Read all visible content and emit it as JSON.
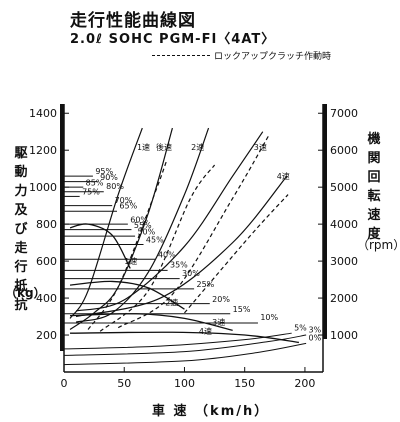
{
  "chart_data": {
    "type": "line",
    "title": "走行性能曲線図",
    "subtitle": "2.0ℓ SOHC PGM-FI〈4AT〉",
    "legend": {
      "entries": [
        {
          "name": "ロックアップクラッチ作動時",
          "style": "dashed"
        }
      ],
      "placement": "top-right"
    },
    "xlabel": "車 速 （km/h）",
    "ylabel": "駆動力 及び 走行抵抗",
    "ylabel_unit": "（kg）",
    "y2label": "機関回転速度",
    "y2label_unit": "（rpm）",
    "xlim": [
      0,
      215
    ],
    "ylim": [
      0,
      1450
    ],
    "y2lim": [
      0,
      7250
    ],
    "x_ticks": [
      "0",
      "50",
      "100",
      "150",
      "200"
    ],
    "y_ticks": [
      "200",
      "400",
      "600",
      "800",
      "1000",
      "1200",
      "1400"
    ],
    "y2_ticks": [
      "1000",
      "2000",
      "3000",
      "4000",
      "5000",
      "6000",
      "7000"
    ],
    "drive_force": [
      {
        "label": "1速",
        "label_x": 50,
        "label_y": 585,
        "x": [
          5,
          20,
          40,
          55
        ],
        "y": [
          780,
          800,
          740,
          560
        ]
      },
      {
        "label": "2速",
        "label_x": 84,
        "label_y": 360,
        "x": [
          5,
          40,
          70,
          100
        ],
        "y": [
          470,
          490,
          455,
          340
        ]
      },
      {
        "label": "3速",
        "label_x": 123,
        "label_y": 255,
        "x": [
          5,
          60,
          100,
          140
        ],
        "y": [
          305,
          315,
          290,
          225
        ]
      },
      {
        "label": "4速",
        "label_x": 112,
        "label_y": 205,
        "x": [
          5,
          90,
          150,
          195
        ],
        "y": [
          210,
          215,
          200,
          160
        ]
      }
    ],
    "engine_speed": [
      {
        "label": "1速",
        "label_x": 66,
        "label_y": 1200,
        "lockup": false,
        "x": [
          5,
          20,
          45,
          65
        ],
        "y": [
          1450,
          2200,
          4800,
          6600
        ]
      },
      {
        "label": "後速",
        "label_x": 83,
        "label_y": 1200,
        "lockup": false,
        "x": [
          5,
          25,
          45,
          70,
          90
        ],
        "y": [
          1150,
          1600,
          2300,
          4300,
          6600
        ]
      },
      {
        "label": "",
        "lockup": true,
        "x": [
          20,
          45,
          75,
          85
        ],
        "y": [
          1150,
          2300,
          4800,
          5700
        ]
      },
      {
        "label": "2速",
        "label_x": 111,
        "label_y": 1200,
        "lockup": false,
        "x": [
          10,
          40,
          70,
          100,
          120
        ],
        "y": [
          1350,
          1600,
          2700,
          4800,
          6600
        ]
      },
      {
        "label": "",
        "lockup": true,
        "x": [
          30,
          70,
          105,
          125
        ],
        "y": [
          1100,
          2200,
          4700,
          5600
        ]
      },
      {
        "label": "3速",
        "label_x": 163,
        "label_y": 1200,
        "lockup": false,
        "x": [
          10,
          50,
          100,
          140,
          165
        ],
        "y": [
          1650,
          1950,
          3400,
          5300,
          6500
        ]
      },
      {
        "label": "",
        "lockup": true,
        "x": [
          45,
          90,
          140,
          170
        ],
        "y": [
          1200,
          2100,
          4700,
          6400
        ]
      },
      {
        "label": "4速",
        "label_x": 182,
        "label_y": 1045,
        "lockup": false,
        "x": [
          10,
          80,
          140,
          185
        ],
        "y": [
          1500,
          2000,
          3500,
          5300
        ]
      },
      {
        "label": "",
        "lockup": true,
        "x": [
          100,
          155,
          186
        ],
        "y": [
          1600,
          3700,
          4800
        ]
      }
    ],
    "running_resistance": [
      {
        "label": "95%",
        "label_x": 26,
        "label_y": 1070,
        "x": [
          0,
          24
        ],
        "y": [
          1060,
          1060
        ]
      },
      {
        "label": "90%",
        "label_x": 30,
        "label_y": 1040,
        "x": [
          0,
          28
        ],
        "y": [
          1030,
          1030
        ]
      },
      {
        "label": "85%",
        "label_x": 18,
        "label_y": 1010,
        "x": [
          0,
          16
        ],
        "y": [
          1000,
          1000
        ]
      },
      {
        "label": "80%",
        "label_x": 35,
        "label_y": 990,
        "x": [
          0,
          33
        ],
        "y": [
          975,
          975
        ]
      },
      {
        "label": "75%",
        "label_x": 15,
        "label_y": 960,
        "x": [
          0,
          13
        ],
        "y": [
          950,
          950
        ]
      },
      {
        "label": "70%",
        "label_x": 42,
        "label_y": 915,
        "x": [
          0,
          40
        ],
        "y": [
          900,
          900
        ]
      },
      {
        "label": "65%",
        "label_x": 46,
        "label_y": 885,
        "x": [
          0,
          44
        ],
        "y": [
          870,
          870
        ]
      },
      {
        "label": "60%",
        "label_x": 55,
        "label_y": 810,
        "x": [
          0,
          53
        ],
        "y": [
          800,
          800
        ]
      },
      {
        "label": "55%",
        "label_x": 58,
        "label_y": 780,
        "x": [
          0,
          56
        ],
        "y": [
          770,
          770
        ]
      },
      {
        "label": "50%",
        "label_x": 61,
        "label_y": 745,
        "x": [
          0,
          59
        ],
        "y": [
          735,
          735
        ]
      },
      {
        "label": "45%",
        "label_x": 68,
        "label_y": 700,
        "x": [
          0,
          66
        ],
        "y": [
          690,
          690
        ]
      },
      {
        "label": "40%",
        "label_x": 78,
        "label_y": 620,
        "x": [
          0,
          76
        ],
        "y": [
          610,
          610
        ]
      },
      {
        "label": "35%",
        "label_x": 88,
        "label_y": 565,
        "x": [
          0,
          86
        ],
        "y": [
          550,
          550
        ]
      },
      {
        "label": "30%",
        "label_x": 98,
        "label_y": 520,
        "x": [
          0,
          96
        ],
        "y": [
          505,
          505
        ]
      },
      {
        "label": "25%",
        "label_x": 110,
        "label_y": 460,
        "x": [
          0,
          108
        ],
        "y": [
          450,
          450
        ]
      },
      {
        "label": "20%",
        "label_x": 123,
        "label_y": 380,
        "x": [
          0,
          121
        ],
        "y": [
          370,
          370
        ]
      },
      {
        "label": "15%",
        "label_x": 140,
        "label_y": 325,
        "x": [
          0,
          138
        ],
        "y": [
          315,
          315
        ]
      },
      {
        "label": "10%",
        "label_x": 163,
        "label_y": 280,
        "x": [
          0,
          161
        ],
        "y": [
          265,
          265
        ]
      },
      {
        "label": "5%",
        "label_x": 191,
        "label_y": 225,
        "x": [
          0,
          80,
          150,
          189
        ],
        "y": [
          125,
          140,
          175,
          210
        ]
      },
      {
        "label": "3%",
        "label_x": 203,
        "label_y": 215,
        "x": [
          0,
          100,
          170,
          201
        ],
        "y": [
          90,
          110,
          165,
          200
        ]
      },
      {
        "label": "0%",
        "label_x": 203,
        "label_y": 170,
        "x": [
          0,
          100,
          160,
          201
        ],
        "y": [
          40,
          60,
          105,
          155
        ]
      }
    ]
  }
}
